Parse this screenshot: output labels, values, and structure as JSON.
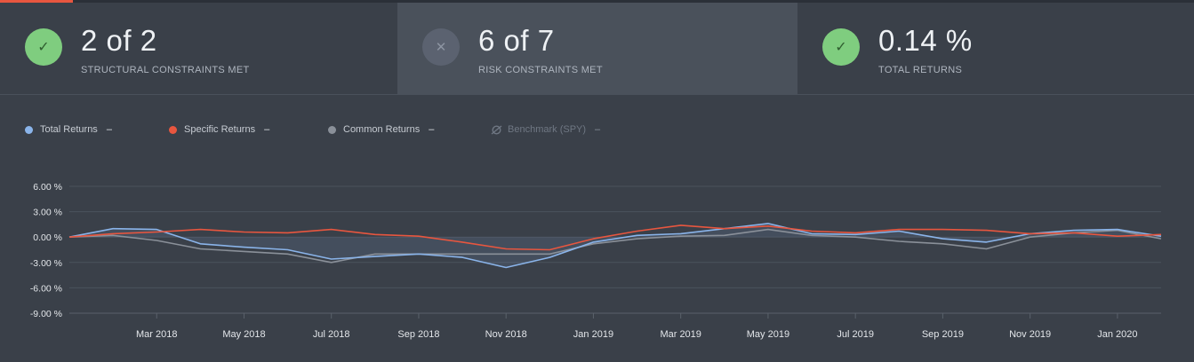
{
  "stats": [
    {
      "value": "2 of 2",
      "caption": "STRUCTURAL CONSTRAINTS MET",
      "status": "met",
      "icon": "check-icon"
    },
    {
      "value": "6 of 7",
      "caption": "RISK CONSTRAINTS MET",
      "status": "unmet",
      "icon": "x-icon"
    },
    {
      "value": "0.14 %",
      "caption": "TOTAL RETURNS",
      "status": "met",
      "icon": "check-icon"
    }
  ],
  "legend": [
    {
      "label": "Total Returns",
      "value": "–",
      "color": "#8ab4ea"
    },
    {
      "label": "Specific Returns",
      "value": "–",
      "color": "#e8563f"
    },
    {
      "label": "Common Returns",
      "value": "–",
      "color": "#8a9099"
    },
    {
      "label": "Benchmark (SPY)",
      "value": "–",
      "color": "#6f7783",
      "disabled": true
    }
  ],
  "chart_data": {
    "type": "line",
    "y_ticks": [
      "6.00 %",
      "3.00 %",
      "0.00 %",
      "-3.00 %",
      "-6.00 %",
      "-9.00 %"
    ],
    "y_tick_values": [
      6,
      3,
      0,
      -3,
      -6,
      -9
    ],
    "ylim": [
      -9,
      6
    ],
    "x_ticks": [
      "Mar 2018",
      "May 2018",
      "Jul 2018",
      "Sep 2018",
      "Nov 2018",
      "Jan 2019",
      "Mar 2019",
      "May 2019",
      "Jul 2019",
      "Sep 2019",
      "Nov 2019",
      "Jan 2020"
    ],
    "x": [
      "Jan 2018",
      "Feb 2018",
      "Mar 2018",
      "Apr 2018",
      "May 2018",
      "Jun 2018",
      "Jul 2018",
      "Aug 2018",
      "Sep 2018",
      "Oct 2018",
      "Nov 2018",
      "Dec 2018",
      "Jan 2019",
      "Feb 2019",
      "Mar 2019",
      "Apr 2019",
      "May 2019",
      "Jun 2019",
      "Jul 2019",
      "Aug 2019",
      "Sep 2019",
      "Oct 2019",
      "Nov 2019",
      "Dec 2019",
      "Jan 2020",
      "Feb 2020"
    ],
    "grid": true,
    "legend_position": "top-left",
    "series": [
      {
        "name": "Total Returns",
        "color": "#8ab4ea",
        "values": [
          0.0,
          1.0,
          0.9,
          -0.8,
          -1.2,
          -1.5,
          -2.6,
          -2.3,
          -2.0,
          -2.4,
          -3.6,
          -2.4,
          -0.6,
          0.2,
          0.4,
          1.0,
          1.6,
          0.4,
          0.3,
          0.7,
          -0.2,
          -0.6,
          0.4,
          0.8,
          0.9,
          0.1
        ]
      },
      {
        "name": "Specific Returns",
        "color": "#e8563f",
        "values": [
          0.0,
          0.4,
          0.6,
          0.9,
          0.6,
          0.5,
          0.9,
          0.3,
          0.1,
          -0.6,
          -1.4,
          -1.5,
          -0.2,
          0.7,
          1.4,
          1.0,
          1.3,
          0.7,
          0.5,
          0.9,
          0.9,
          0.8,
          0.4,
          0.5,
          0.1,
          0.3
        ]
      },
      {
        "name": "Common Returns",
        "color": "#8a9099",
        "values": [
          0.0,
          0.2,
          -0.4,
          -1.4,
          -1.7,
          -2.0,
          -3.0,
          -2.0,
          -2.0,
          -2.0,
          -2.0,
          -2.0,
          -0.8,
          -0.2,
          0.1,
          0.2,
          0.9,
          0.2,
          0.0,
          -0.5,
          -0.8,
          -1.4,
          0.0,
          0.5,
          0.8,
          -0.2
        ]
      }
    ]
  }
}
